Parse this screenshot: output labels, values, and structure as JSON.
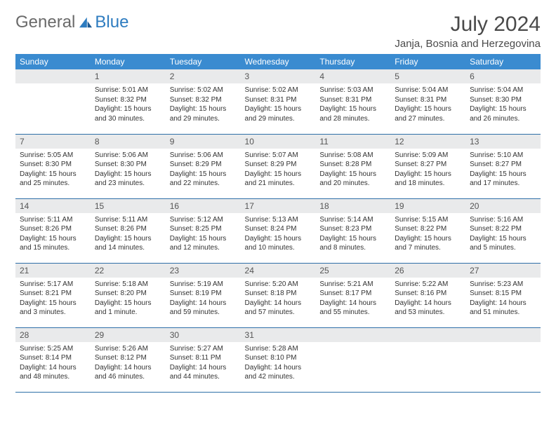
{
  "brand": {
    "part1": "General",
    "part2": "Blue"
  },
  "title": "July 2024",
  "location": "Janja, Bosnia and Herzegovina",
  "colors": {
    "header_bg": "#3a8bd0",
    "header_text": "#ffffff",
    "daynum_bg": "#e9eaeb",
    "row_border": "#2e6fa8",
    "brand_gray": "#6a6a6a",
    "brand_blue": "#2e7cc0"
  },
  "weekdays": [
    "Sunday",
    "Monday",
    "Tuesday",
    "Wednesday",
    "Thursday",
    "Friday",
    "Saturday"
  ],
  "weeks": [
    [
      {
        "day": "",
        "sunrise": "",
        "sunset": "",
        "daylight": ""
      },
      {
        "day": "1",
        "sunrise": "Sunrise: 5:01 AM",
        "sunset": "Sunset: 8:32 PM",
        "daylight": "Daylight: 15 hours and 30 minutes."
      },
      {
        "day": "2",
        "sunrise": "Sunrise: 5:02 AM",
        "sunset": "Sunset: 8:32 PM",
        "daylight": "Daylight: 15 hours and 29 minutes."
      },
      {
        "day": "3",
        "sunrise": "Sunrise: 5:02 AM",
        "sunset": "Sunset: 8:31 PM",
        "daylight": "Daylight: 15 hours and 29 minutes."
      },
      {
        "day": "4",
        "sunrise": "Sunrise: 5:03 AM",
        "sunset": "Sunset: 8:31 PM",
        "daylight": "Daylight: 15 hours and 28 minutes."
      },
      {
        "day": "5",
        "sunrise": "Sunrise: 5:04 AM",
        "sunset": "Sunset: 8:31 PM",
        "daylight": "Daylight: 15 hours and 27 minutes."
      },
      {
        "day": "6",
        "sunrise": "Sunrise: 5:04 AM",
        "sunset": "Sunset: 8:30 PM",
        "daylight": "Daylight: 15 hours and 26 minutes."
      }
    ],
    [
      {
        "day": "7",
        "sunrise": "Sunrise: 5:05 AM",
        "sunset": "Sunset: 8:30 PM",
        "daylight": "Daylight: 15 hours and 25 minutes."
      },
      {
        "day": "8",
        "sunrise": "Sunrise: 5:06 AM",
        "sunset": "Sunset: 8:30 PM",
        "daylight": "Daylight: 15 hours and 23 minutes."
      },
      {
        "day": "9",
        "sunrise": "Sunrise: 5:06 AM",
        "sunset": "Sunset: 8:29 PM",
        "daylight": "Daylight: 15 hours and 22 minutes."
      },
      {
        "day": "10",
        "sunrise": "Sunrise: 5:07 AM",
        "sunset": "Sunset: 8:29 PM",
        "daylight": "Daylight: 15 hours and 21 minutes."
      },
      {
        "day": "11",
        "sunrise": "Sunrise: 5:08 AM",
        "sunset": "Sunset: 8:28 PM",
        "daylight": "Daylight: 15 hours and 20 minutes."
      },
      {
        "day": "12",
        "sunrise": "Sunrise: 5:09 AM",
        "sunset": "Sunset: 8:27 PM",
        "daylight": "Daylight: 15 hours and 18 minutes."
      },
      {
        "day": "13",
        "sunrise": "Sunrise: 5:10 AM",
        "sunset": "Sunset: 8:27 PM",
        "daylight": "Daylight: 15 hours and 17 minutes."
      }
    ],
    [
      {
        "day": "14",
        "sunrise": "Sunrise: 5:11 AM",
        "sunset": "Sunset: 8:26 PM",
        "daylight": "Daylight: 15 hours and 15 minutes."
      },
      {
        "day": "15",
        "sunrise": "Sunrise: 5:11 AM",
        "sunset": "Sunset: 8:26 PM",
        "daylight": "Daylight: 15 hours and 14 minutes."
      },
      {
        "day": "16",
        "sunrise": "Sunrise: 5:12 AM",
        "sunset": "Sunset: 8:25 PM",
        "daylight": "Daylight: 15 hours and 12 minutes."
      },
      {
        "day": "17",
        "sunrise": "Sunrise: 5:13 AM",
        "sunset": "Sunset: 8:24 PM",
        "daylight": "Daylight: 15 hours and 10 minutes."
      },
      {
        "day": "18",
        "sunrise": "Sunrise: 5:14 AM",
        "sunset": "Sunset: 8:23 PM",
        "daylight": "Daylight: 15 hours and 8 minutes."
      },
      {
        "day": "19",
        "sunrise": "Sunrise: 5:15 AM",
        "sunset": "Sunset: 8:22 PM",
        "daylight": "Daylight: 15 hours and 7 minutes."
      },
      {
        "day": "20",
        "sunrise": "Sunrise: 5:16 AM",
        "sunset": "Sunset: 8:22 PM",
        "daylight": "Daylight: 15 hours and 5 minutes."
      }
    ],
    [
      {
        "day": "21",
        "sunrise": "Sunrise: 5:17 AM",
        "sunset": "Sunset: 8:21 PM",
        "daylight": "Daylight: 15 hours and 3 minutes."
      },
      {
        "day": "22",
        "sunrise": "Sunrise: 5:18 AM",
        "sunset": "Sunset: 8:20 PM",
        "daylight": "Daylight: 15 hours and 1 minute."
      },
      {
        "day": "23",
        "sunrise": "Sunrise: 5:19 AM",
        "sunset": "Sunset: 8:19 PM",
        "daylight": "Daylight: 14 hours and 59 minutes."
      },
      {
        "day": "24",
        "sunrise": "Sunrise: 5:20 AM",
        "sunset": "Sunset: 8:18 PM",
        "daylight": "Daylight: 14 hours and 57 minutes."
      },
      {
        "day": "25",
        "sunrise": "Sunrise: 5:21 AM",
        "sunset": "Sunset: 8:17 PM",
        "daylight": "Daylight: 14 hours and 55 minutes."
      },
      {
        "day": "26",
        "sunrise": "Sunrise: 5:22 AM",
        "sunset": "Sunset: 8:16 PM",
        "daylight": "Daylight: 14 hours and 53 minutes."
      },
      {
        "day": "27",
        "sunrise": "Sunrise: 5:23 AM",
        "sunset": "Sunset: 8:15 PM",
        "daylight": "Daylight: 14 hours and 51 minutes."
      }
    ],
    [
      {
        "day": "28",
        "sunrise": "Sunrise: 5:25 AM",
        "sunset": "Sunset: 8:14 PM",
        "daylight": "Daylight: 14 hours and 48 minutes."
      },
      {
        "day": "29",
        "sunrise": "Sunrise: 5:26 AM",
        "sunset": "Sunset: 8:12 PM",
        "daylight": "Daylight: 14 hours and 46 minutes."
      },
      {
        "day": "30",
        "sunrise": "Sunrise: 5:27 AM",
        "sunset": "Sunset: 8:11 PM",
        "daylight": "Daylight: 14 hours and 44 minutes."
      },
      {
        "day": "31",
        "sunrise": "Sunrise: 5:28 AM",
        "sunset": "Sunset: 8:10 PM",
        "daylight": "Daylight: 14 hours and 42 minutes."
      },
      {
        "day": "",
        "sunrise": "",
        "sunset": "",
        "daylight": ""
      },
      {
        "day": "",
        "sunrise": "",
        "sunset": "",
        "daylight": ""
      },
      {
        "day": "",
        "sunrise": "",
        "sunset": "",
        "daylight": ""
      }
    ]
  ]
}
